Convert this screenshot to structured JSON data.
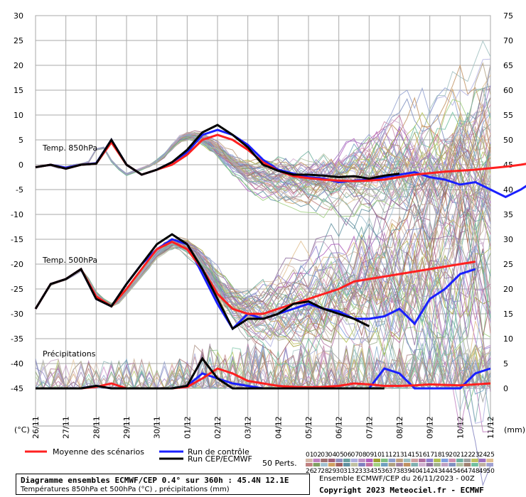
{
  "chart_data": {
    "type": "line",
    "left_axis": {
      "unit": "(°C)",
      "ticks": [
        30,
        25,
        20,
        15,
        10,
        5,
        0,
        -5,
        -10,
        -15,
        -20,
        -25,
        -30,
        -35,
        -40,
        -45
      ],
      "range": [
        -45,
        30
      ]
    },
    "right_axis": {
      "unit": "(mm)",
      "ticks": [
        75,
        70,
        65,
        60,
        55,
        50,
        45,
        40,
        35,
        30,
        25,
        20,
        15,
        10,
        5,
        0
      ],
      "range": [
        0,
        75
      ]
    },
    "x_labels": [
      "26/11",
      "27/11",
      "28/11",
      "29/11",
      "30/11",
      "01/12",
      "02/12",
      "03/12",
      "04/12",
      "05/12",
      "06/12",
      "07/12",
      "08/12",
      "09/12",
      "10/12",
      "11/12"
    ],
    "grid": true,
    "sections": [
      "Temp. 850hPa",
      "Temp. 500hPa",
      "Précipitations"
    ],
    "series": [
      {
        "name": "Moyenne des scénarios",
        "color": "#ff2020",
        "width": 3,
        "t850": [
          -0.5,
          0,
          -0.8,
          0,
          0.2,
          4.5,
          0,
          -2,
          -1,
          0,
          2,
          5,
          6,
          5,
          3,
          0.5,
          -1.2,
          -2.3,
          -2.7,
          -3,
          -3.2,
          -3.3,
          -3.2,
          -3,
          -2.5,
          -2,
          -1.7,
          -1.4,
          -1.2,
          -1,
          -0.7,
          -0.4,
          0,
          0.5,
          1,
          2
        ],
        "t500": [
          -29,
          -24,
          -23,
          -21,
          -26.5,
          -28.5,
          -25,
          -21,
          -17,
          -15.5,
          -17,
          -21,
          -26,
          -29,
          -30,
          -30,
          -29,
          -28,
          -27,
          -26,
          -25,
          -23.5,
          -23,
          -22.5,
          -22,
          -21.5,
          -21,
          -20.5,
          -20,
          -19.5
        ],
        "precip": [
          0,
          0,
          0,
          0,
          0.3,
          1,
          0,
          0,
          0,
          0,
          0.3,
          2,
          4,
          3,
          1.5,
          1,
          0.5,
          0.3,
          0.2,
          0.3,
          0.5,
          1,
          0.8,
          0.5,
          0.5,
          0.6,
          0.8,
          0.7,
          0.6,
          0.8,
          1
        ]
      },
      {
        "name": "Run de contrôle",
        "color": "#1a20ff",
        "width": 3,
        "t850": [
          -0.5,
          0,
          -0.6,
          0,
          0.3,
          5,
          0,
          -2,
          -1,
          0.5,
          2.5,
          6,
          7,
          6,
          4,
          1,
          -1,
          -1.8,
          -2.5,
          -2.8,
          -3.5,
          -3.2,
          -3,
          -2.5,
          -2,
          -1.5,
          -2.5,
          -3,
          -4,
          -3.5,
          -5,
          -6.5,
          -5,
          -3,
          -1,
          1
        ],
        "t500": [
          -29,
          -24,
          -23,
          -21,
          -27,
          -28.5,
          -24,
          -20,
          -17,
          -15,
          -16,
          -22,
          -28,
          -33,
          -30,
          -31,
          -30,
          -29,
          -28,
          -29,
          -29.5,
          -31,
          -31,
          -30.5,
          -29,
          -32,
          -27,
          -25,
          -22,
          -21
        ],
        "precip": [
          0,
          0,
          0,
          0,
          0.5,
          0,
          0,
          0,
          0,
          0,
          0.5,
          3,
          2,
          1,
          0.5,
          0,
          0,
          0,
          0,
          0,
          0,
          0,
          0,
          4,
          3,
          0,
          0,
          0,
          0,
          3,
          4
        ]
      },
      {
        "name": "Run CEP/ECMWF",
        "color": "#000000",
        "width": 3,
        "t850": [
          -0.5,
          0,
          -0.8,
          0,
          0.2,
          5,
          0,
          -2,
          -1,
          0.5,
          3,
          6.5,
          8,
          6,
          3.5,
          0,
          -1.2,
          -2,
          -2,
          -2.2,
          -2.5,
          -2.3,
          -2.8,
          -2.2,
          -1.8
        ],
        "t500": [
          -29,
          -24,
          -23,
          -21,
          -27,
          -28.5,
          -24,
          -20,
          -16,
          -14,
          -16,
          -21,
          -27,
          -33,
          -31,
          -31,
          -30,
          -28,
          -27.5,
          -29,
          -30,
          -31,
          -32.5
        ],
        "precip": [
          0,
          0,
          0,
          0,
          0.5,
          0,
          0,
          0,
          0,
          0,
          0.5,
          6,
          2,
          0,
          0,
          0,
          0,
          0,
          0,
          0,
          0,
          0,
          0,
          0
        ]
      }
    ],
    "ensemble_members": 50
  },
  "labels": {
    "t850": "Temp. 850hPa",
    "t500": "Temp. 500hPa",
    "precip": "Précipitations",
    "unit_left": "(°C)",
    "unit_right": "(mm)"
  },
  "legend": {
    "mean": "Moyenne des scénarios",
    "control": "Run de contrôle",
    "oper": "Run CEP/ECMWF",
    "perts": "50 Perts.",
    "member_row1": [
      "01",
      "02",
      "03",
      "04",
      "05",
      "06",
      "07",
      "08",
      "09",
      "10",
      "11",
      "12",
      "13",
      "14",
      "15",
      "16",
      "17",
      "18",
      "19",
      "20",
      "21",
      "22",
      "23",
      "24",
      "25"
    ],
    "member_row2": [
      "26",
      "27",
      "28",
      "29",
      "30",
      "31",
      "32",
      "33",
      "34",
      "35",
      "36",
      "37",
      "38",
      "39",
      "40",
      "41",
      "42",
      "43",
      "44",
      "45",
      "46",
      "47",
      "48",
      "49",
      "50"
    ],
    "member_colors_row1": [
      "#d4b8a8",
      "#c080c0",
      "#a07070",
      "#a0607a",
      "#9090c0",
      "#6aa0a0",
      "#b0b0e0",
      "#c090c0",
      "#b060c0",
      "#a0a030",
      "#80c080",
      "#90a0d0",
      "#c0a080",
      "#a0c0c0",
      "#d0a0a0",
      "#b070a0",
      "#9080d0",
      "#b0c050",
      "#80a0e0",
      "#d090b0",
      "#70b0a0",
      "#a0a0a0",
      "#c0c060",
      "#a070c0",
      "#e0c090"
    ],
    "member_colors_row2": [
      "#c08080",
      "#80a060",
      "#a0c0d0",
      "#d0a060",
      "#a06060",
      "#6090a0",
      "#c0c0a0",
      "#8080c0",
      "#c070a0",
      "#a0d080",
      "#70a0c0",
      "#b0a080",
      "#a080a0",
      "#c09060",
      "#80b0b0",
      "#d0b0d0",
      "#9070a0",
      "#a0b090",
      "#c0a0c0",
      "#8090c0",
      "#b0c0a0",
      "#a08070",
      "#70c0a0",
      "#c0b0a0",
      "#a0a0d0"
    ]
  },
  "footer": {
    "title": "Diagramme ensembles ECMWF/CEP 0.4° sur 360h : 45.4N 12.1E",
    "subtitle": "Températures 850hPa et 500hPa (°C) , précipitations (mm)",
    "run_info": "Ensemble ECMWF/CEP du 26/11/2023 - 00Z",
    "copyright": "Copyright 2023 Meteociel.fr - ECMWF"
  }
}
